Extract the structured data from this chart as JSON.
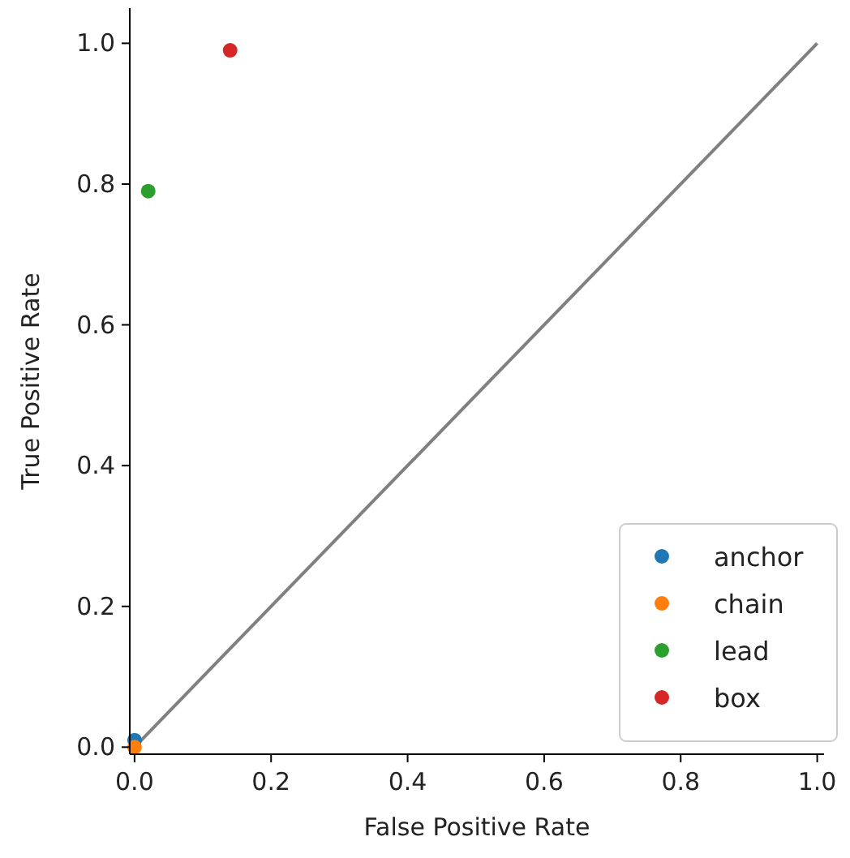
{
  "chart_data": {
    "type": "scatter",
    "xlabel": "False Positive Rate",
    "ylabel": "True Positive Rate",
    "xlim": [
      -0.007,
      1.01
    ],
    "ylim": [
      -0.01,
      1.05
    ],
    "xticks": [
      {
        "value": 0,
        "label": "0.0"
      },
      0.2,
      0.4,
      0.6,
      0.8,
      {
        "value": 1,
        "label": "1.0"
      }
    ],
    "yticks": [
      {
        "value": 0,
        "label": "0.0"
      },
      0.2,
      0.4,
      0.6,
      0.8,
      {
        "value": 1,
        "label": "1.0"
      }
    ],
    "grid": false,
    "legend": "bottom right",
    "marker": "circle",
    "series": [
      {
        "type": "line",
        "color": "#808080",
        "marker": "none",
        "x": [
          0,
          1
        ],
        "values": [
          0,
          1
        ]
      },
      {
        "name": "anchor",
        "color": "#1f77b4",
        "x": [
          0
        ],
        "values": [
          0.01
        ]
      },
      {
        "name": "chain",
        "color": "#ff7f0e",
        "x": [
          0
        ],
        "values": [
          0
        ]
      },
      {
        "name": "lead",
        "color": "#2ca02c",
        "x": [
          0.02
        ],
        "values": [
          0.79
        ]
      },
      {
        "name": "box",
        "color": "#d62728",
        "x": [
          0.14
        ],
        "values": [
          0.99
        ]
      }
    ]
  }
}
